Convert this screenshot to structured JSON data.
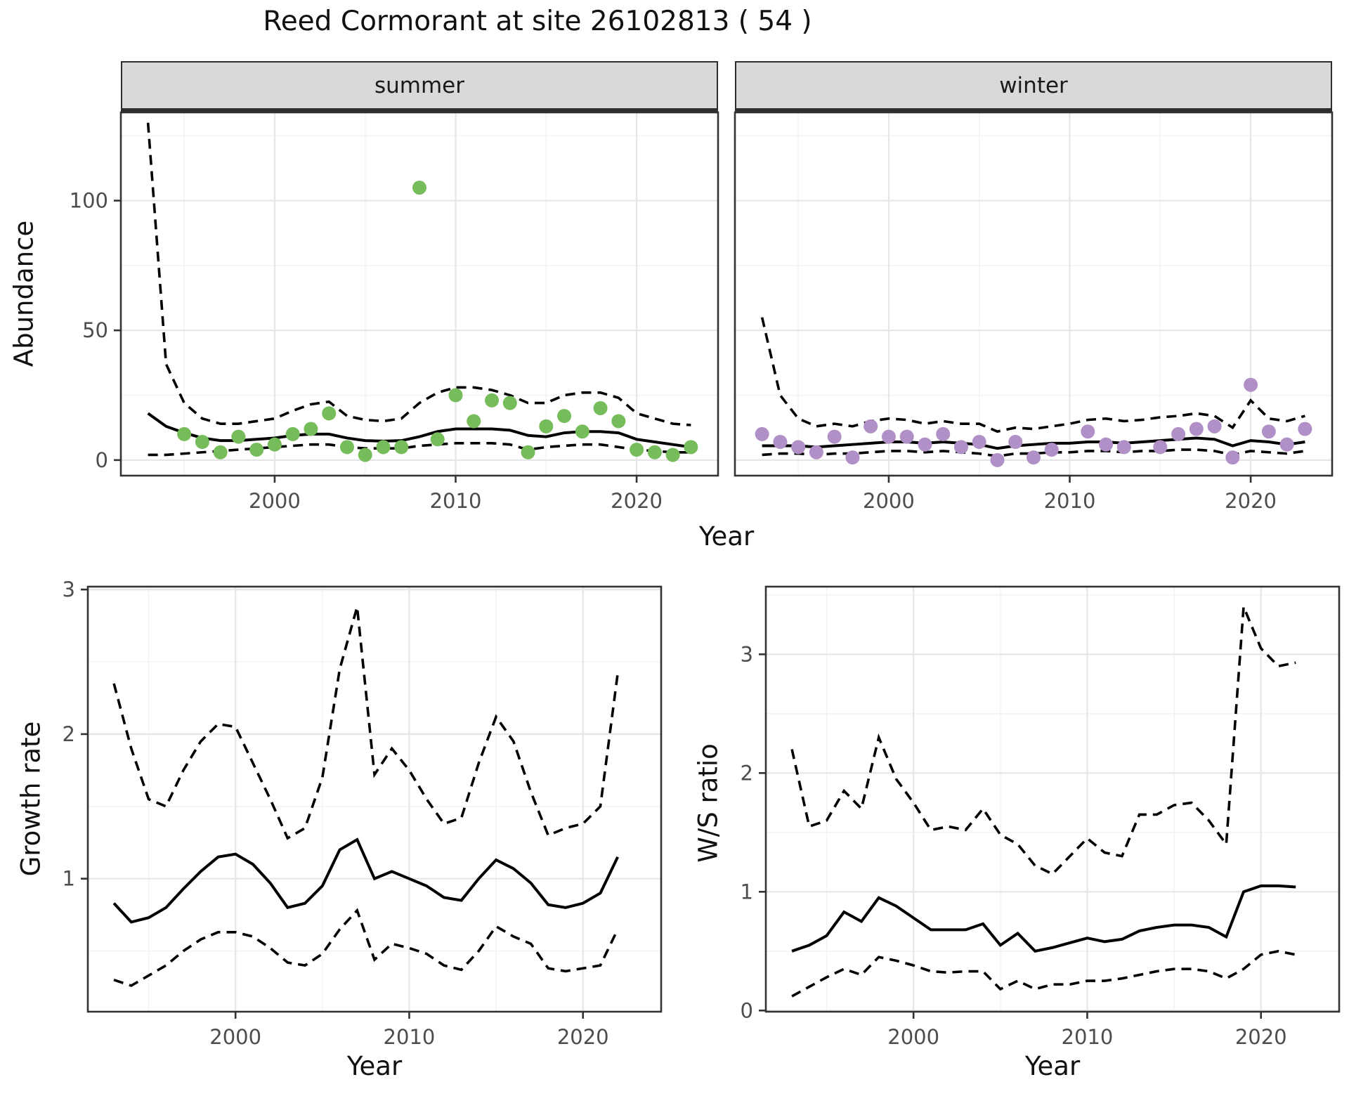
{
  "title": "Reed Cormorant at site 26102813 ( 54 )",
  "colors": {
    "summer_points": "#76BC5B",
    "winter_points": "#B18FC7",
    "fit_line": "#000000",
    "strip_bg": "#D9D9D9",
    "panel_border": "#333333",
    "grid_major": "#E6E6E6",
    "grid_minor": "#F3F3F3",
    "axis_text": "#4D4D4D"
  },
  "chart_data": [
    {
      "id": "abundance",
      "type": "scatter",
      "ylabel": "Abundance",
      "xlabel": "Year",
      "x_range": [
        1991.5,
        2024.5
      ],
      "y_range": [
        -6,
        134
      ],
      "xticks": [
        2000,
        2010,
        2020
      ],
      "xticks_minor": [
        1995,
        2005,
        2015
      ],
      "yticks": [
        0,
        50,
        100
      ],
      "yticks_minor": [
        25,
        75,
        125
      ],
      "grid": true,
      "legend_position": "none",
      "facets": [
        {
          "label": "summer",
          "point_color": "#76BC5B",
          "points": [
            [
              1995,
              10
            ],
            [
              1996,
              7
            ],
            [
              1997,
              3
            ],
            [
              1998,
              9
            ],
            [
              1999,
              4
            ],
            [
              2000,
              6
            ],
            [
              2001,
              10
            ],
            [
              2002,
              12
            ],
            [
              2003,
              18
            ],
            [
              2004,
              5
            ],
            [
              2005,
              2
            ],
            [
              2006,
              5
            ],
            [
              2007,
              5
            ],
            [
              2008,
              105
            ],
            [
              2009,
              8
            ],
            [
              2010,
              25
            ],
            [
              2011,
              15
            ],
            [
              2012,
              23
            ],
            [
              2013,
              22
            ],
            [
              2014,
              3
            ],
            [
              2015,
              13
            ],
            [
              2016,
              17
            ],
            [
              2017,
              11
            ],
            [
              2018,
              20
            ],
            [
              2019,
              15
            ],
            [
              2020,
              4
            ],
            [
              2021,
              3
            ],
            [
              2022,
              2
            ],
            [
              2023,
              5
            ]
          ],
          "fit_x0": 1993,
          "fit_median": [
            18,
            13,
            10.5,
            8.5,
            7.5,
            7.5,
            8,
            8.5,
            9.5,
            10,
            10,
            8.5,
            7.5,
            7.3,
            7.5,
            9,
            11,
            12,
            12,
            12,
            11.5,
            9.5,
            9,
            10.5,
            11,
            11,
            10.5,
            8,
            7,
            6,
            5
          ],
          "fit_upper": [
            130,
            37,
            22,
            16,
            14,
            14,
            15,
            16,
            19,
            21.5,
            22.5,
            17,
            15.5,
            15,
            16,
            22,
            26,
            28,
            28,
            27,
            25,
            22,
            22,
            25,
            26,
            26,
            24,
            18,
            16,
            14,
            13.5
          ],
          "fit_lower": [
            2,
            2,
            2.5,
            3,
            3.5,
            4,
            4.5,
            5,
            5.5,
            6,
            6,
            5,
            4.5,
            4.5,
            4.5,
            5.5,
            6,
            6.5,
            6.5,
            6.5,
            6,
            4,
            5,
            5.5,
            6,
            6,
            5,
            4,
            3.5,
            3,
            3
          ]
        },
        {
          "label": "winter",
          "point_color": "#B18FC7",
          "points": [
            [
              1993,
              10
            ],
            [
              1994,
              7
            ],
            [
              1995,
              5
            ],
            [
              1996,
              3
            ],
            [
              1997,
              9
            ],
            [
              1998,
              1
            ],
            [
              1999,
              13
            ],
            [
              2000,
              9
            ],
            [
              2001,
              9
            ],
            [
              2002,
              6
            ],
            [
              2003,
              10
            ],
            [
              2004,
              5
            ],
            [
              2005,
              7
            ],
            [
              2006,
              0
            ],
            [
              2007,
              7
            ],
            [
              2008,
              1
            ],
            [
              2009,
              4
            ],
            [
              2011,
              11
            ],
            [
              2012,
              6
            ],
            [
              2013,
              5
            ],
            [
              2015,
              5
            ],
            [
              2016,
              10
            ],
            [
              2017,
              12
            ],
            [
              2018,
              13
            ],
            [
              2019,
              1
            ],
            [
              2020,
              29
            ],
            [
              2021,
              11
            ],
            [
              2022,
              6
            ],
            [
              2023,
              12
            ]
          ],
          "fit_x0": 1993,
          "fit_median": [
            5.5,
            5.5,
            5.5,
            5,
            5.5,
            6,
            6.5,
            7,
            7,
            6.5,
            7,
            6.5,
            6,
            4.5,
            5.5,
            6,
            6.5,
            6.5,
            7,
            7,
            6.5,
            7,
            7.5,
            8,
            8.5,
            8,
            5.5,
            7.5,
            7,
            6,
            7
          ],
          "fit_upper": [
            55,
            25,
            16,
            13,
            14,
            13,
            15,
            16,
            15.5,
            14,
            15,
            14,
            14,
            11,
            12.5,
            12,
            13,
            14,
            15.5,
            16,
            15,
            15.5,
            16.5,
            17,
            18,
            17,
            12.5,
            23,
            16,
            15,
            17
          ],
          "fit_lower": [
            2,
            2.5,
            2.5,
            2,
            2.5,
            2.5,
            3,
            3.5,
            3.5,
            3,
            3.5,
            3,
            2.5,
            1.5,
            2.5,
            2.5,
            3,
            3,
            3.5,
            3.5,
            3,
            3.5,
            3.5,
            4,
            4,
            3.5,
            2,
            3.5,
            3,
            2.5,
            3.5
          ]
        }
      ]
    },
    {
      "id": "growth_rate",
      "type": "line",
      "ylabel": "Growth rate",
      "xlabel": "Year",
      "x_range": [
        1991.5,
        2024.5
      ],
      "y_range": [
        0.08,
        3.02
      ],
      "xticks": [
        2000,
        2010,
        2020
      ],
      "xticks_minor": [
        1995,
        2005,
        2015
      ],
      "yticks": [
        1,
        2,
        3
      ],
      "yticks_minor": [
        0.5,
        1.5,
        2.5
      ],
      "grid": true,
      "x0": 1993,
      "series": [
        {
          "name": "median",
          "style": "solid",
          "values": [
            0.83,
            0.7,
            0.73,
            0.8,
            0.93,
            1.05,
            1.15,
            1.17,
            1.1,
            0.97,
            0.8,
            0.83,
            0.95,
            1.2,
            1.27,
            1.0,
            1.05,
            1.0,
            0.95,
            0.87,
            0.85,
            1.0,
            1.13,
            1.07,
            0.97,
            0.82,
            0.8,
            0.83,
            0.9,
            1.15
          ]
        },
        {
          "name": "upper_ci",
          "style": "dashed",
          "values": [
            2.35,
            1.9,
            1.55,
            1.5,
            1.75,
            1.95,
            2.07,
            2.05,
            1.8,
            1.55,
            1.28,
            1.35,
            1.7,
            2.45,
            2.88,
            1.72,
            1.9,
            1.75,
            1.55,
            1.38,
            1.42,
            1.8,
            2.12,
            1.95,
            1.6,
            1.3,
            1.35,
            1.38,
            1.5,
            2.42
          ]
        },
        {
          "name": "lower_ci",
          "style": "dashed",
          "values": [
            0.3,
            0.26,
            0.33,
            0.4,
            0.5,
            0.58,
            0.63,
            0.63,
            0.6,
            0.52,
            0.42,
            0.4,
            0.48,
            0.65,
            0.78,
            0.44,
            0.55,
            0.52,
            0.48,
            0.4,
            0.37,
            0.5,
            0.67,
            0.6,
            0.55,
            0.38,
            0.36,
            0.38,
            0.4,
            0.65
          ]
        }
      ]
    },
    {
      "id": "ws_ratio",
      "type": "line",
      "ylabel": "W/S ratio",
      "xlabel": "Year",
      "x_range": [
        1991.5,
        2024.5
      ],
      "y_range": [
        -0.01,
        3.57
      ],
      "xticks": [
        2000,
        2010,
        2020
      ],
      "xticks_minor": [
        1995,
        2005,
        2015
      ],
      "yticks": [
        0,
        1,
        2,
        3
      ],
      "yticks_minor": [
        0.5,
        1.5,
        2.5,
        3.5
      ],
      "grid": true,
      "x0": 1993,
      "series": [
        {
          "name": "median",
          "style": "solid",
          "values": [
            0.5,
            0.55,
            0.63,
            0.83,
            0.75,
            0.95,
            0.88,
            0.78,
            0.68,
            0.68,
            0.68,
            0.73,
            0.55,
            0.65,
            0.5,
            0.53,
            0.57,
            0.61,
            0.58,
            0.6,
            0.67,
            0.7,
            0.72,
            0.72,
            0.7,
            0.62,
            1.0,
            1.05,
            1.05,
            1.04
          ]
        },
        {
          "name": "upper_ci",
          "style": "dashed",
          "values": [
            2.2,
            1.55,
            1.6,
            1.85,
            1.7,
            2.3,
            1.95,
            1.75,
            1.52,
            1.55,
            1.52,
            1.7,
            1.48,
            1.4,
            1.22,
            1.15,
            1.3,
            1.45,
            1.33,
            1.3,
            1.65,
            1.65,
            1.73,
            1.75,
            1.6,
            1.4,
            3.4,
            3.05,
            2.9,
            2.93
          ]
        },
        {
          "name": "lower_ci",
          "style": "dashed",
          "values": [
            0.12,
            0.2,
            0.28,
            0.35,
            0.3,
            0.45,
            0.42,
            0.38,
            0.33,
            0.32,
            0.33,
            0.33,
            0.18,
            0.25,
            0.18,
            0.22,
            0.22,
            0.25,
            0.25,
            0.27,
            0.3,
            0.33,
            0.35,
            0.35,
            0.33,
            0.27,
            0.35,
            0.47,
            0.5,
            0.47
          ]
        }
      ]
    }
  ]
}
